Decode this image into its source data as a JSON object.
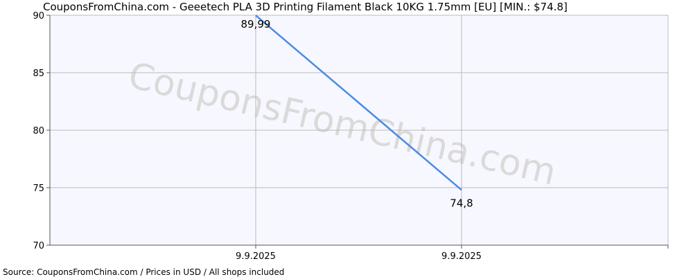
{
  "title": "CouponsFromChina.com - Geeetech PLA 3D Printing Filament Black 10KG 1.75mm [EU] [MIN.: $74.8]",
  "source": "Source:  CouponsFromChina.com / Prices in USD / All shops included",
  "watermark": "CouponsFromChina.com",
  "colors": {
    "plot_background": "#F7F7FF",
    "line": "#4A8BE3",
    "grid": "#BBBBBB",
    "axis": "#555555",
    "watermark": "#DADADA"
  },
  "chart_data": {
    "type": "line",
    "title": "CouponsFromChina.com - Geeetech PLA 3D Printing Filament Black 10KG 1.75mm [EU] [MIN.: $74.8]",
    "xlabel": "",
    "ylabel": "",
    "ylim": [
      70,
      90
    ],
    "yticks": [
      70,
      75,
      80,
      85,
      90
    ],
    "grid": true,
    "x": [
      "9.9.2025",
      "9.9.2025"
    ],
    "series": [
      {
        "values": [
          89.99,
          74.8
        ],
        "labels": [
          "89,99",
          "74,8"
        ]
      }
    ]
  }
}
